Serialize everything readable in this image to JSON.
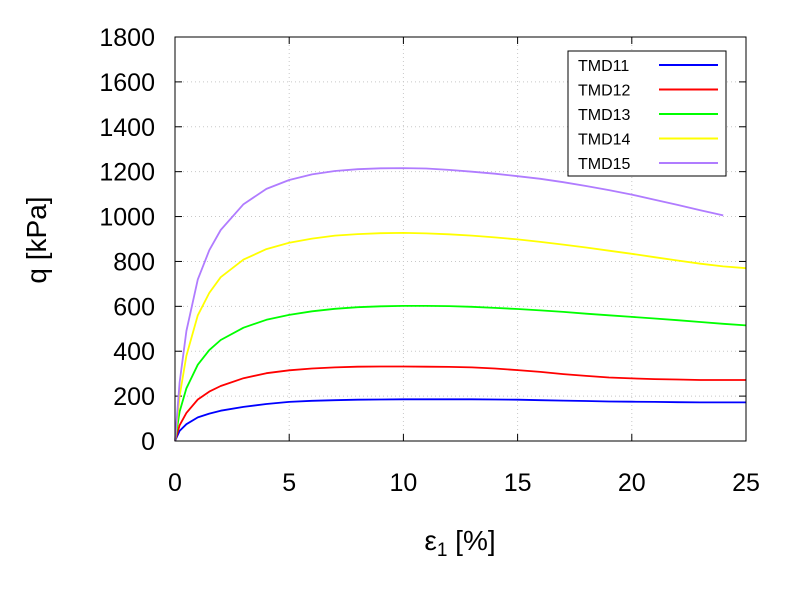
{
  "chart_data": {
    "type": "line",
    "title": "",
    "xlabel": "ε",
    "xlabel_sub": "1",
    "xlabel_unit": " [%]",
    "ylabel": "q [kPa]",
    "xlim": [
      0,
      25
    ],
    "ylim": [
      0,
      1800
    ],
    "xticks": [
      0,
      5,
      10,
      15,
      20,
      25
    ],
    "yticks": [
      0,
      200,
      400,
      600,
      800,
      1000,
      1200,
      1400,
      1600,
      1800
    ],
    "grid": true,
    "legend_position": "top-right",
    "series": [
      {
        "name": "TMD11",
        "color": "#0000ff",
        "x": [
          0,
          0.2,
          0.5,
          1,
          1.5,
          2,
          3,
          4,
          5,
          6,
          7,
          8,
          9,
          10,
          11,
          12,
          13,
          14,
          15,
          16,
          17,
          18,
          19,
          20,
          21,
          22,
          23,
          24,
          25
        ],
        "y": [
          0,
          45,
          75,
          105,
          122,
          135,
          152,
          165,
          174,
          179,
          182,
          184,
          185,
          186,
          186,
          186,
          186,
          185,
          184,
          182,
          180,
          178,
          176,
          175,
          174,
          173,
          172,
          172,
          172
        ]
      },
      {
        "name": "TMD12",
        "color": "#ff0000",
        "x": [
          0,
          0.2,
          0.5,
          1,
          1.5,
          2,
          3,
          4,
          5,
          6,
          7,
          8,
          9,
          10,
          11,
          12,
          13,
          14,
          15,
          16,
          17,
          18,
          19,
          20,
          21,
          22,
          23,
          24,
          25
        ],
        "y": [
          0,
          70,
          125,
          185,
          220,
          245,
          280,
          302,
          315,
          323,
          328,
          331,
          332,
          332,
          331,
          330,
          328,
          323,
          316,
          308,
          298,
          290,
          283,
          279,
          276,
          274,
          272,
          272,
          272
        ]
      },
      {
        "name": "TMD13",
        "color": "#00ff00",
        "x": [
          0,
          0.2,
          0.5,
          1,
          1.5,
          2,
          3,
          4,
          5,
          6,
          7,
          8,
          9,
          10,
          11,
          12,
          13,
          14,
          15,
          16,
          17,
          18,
          19,
          20,
          21,
          22,
          23,
          24,
          25
        ],
        "y": [
          0,
          130,
          235,
          340,
          405,
          450,
          505,
          540,
          562,
          578,
          589,
          596,
          600,
          602,
          602,
          601,
          598,
          593,
          588,
          582,
          575,
          567,
          560,
          553,
          546,
          538,
          530,
          522,
          515
        ]
      },
      {
        "name": "TMD14",
        "color": "#ffff00",
        "x": [
          0,
          0.2,
          0.5,
          1,
          1.5,
          2,
          3,
          4,
          5,
          6,
          7,
          8,
          9,
          10,
          11,
          12,
          13,
          14,
          15,
          16,
          17,
          18,
          19,
          20,
          21,
          22,
          23,
          24,
          25
        ],
        "y": [
          0,
          200,
          380,
          560,
          660,
          730,
          808,
          855,
          883,
          902,
          915,
          922,
          926,
          927,
          925,
          921,
          915,
          907,
          898,
          887,
          875,
          862,
          848,
          834,
          819,
          804,
          790,
          778,
          770
        ]
      },
      {
        "name": "TMD15",
        "color": "#b07cff",
        "x": [
          0,
          0.2,
          0.5,
          1,
          1.5,
          2,
          3,
          4,
          5,
          6,
          7,
          8,
          9,
          10,
          11,
          12,
          13,
          14,
          15,
          16,
          17,
          18,
          19,
          20,
          21,
          22,
          23,
          24
        ],
        "y": [
          0,
          260,
          490,
          720,
          850,
          940,
          1055,
          1123,
          1163,
          1188,
          1203,
          1211,
          1215,
          1216,
          1214,
          1208,
          1200,
          1191,
          1180,
          1168,
          1153,
          1136,
          1118,
          1098,
          1075,
          1052,
          1028,
          1005
        ]
      }
    ]
  }
}
